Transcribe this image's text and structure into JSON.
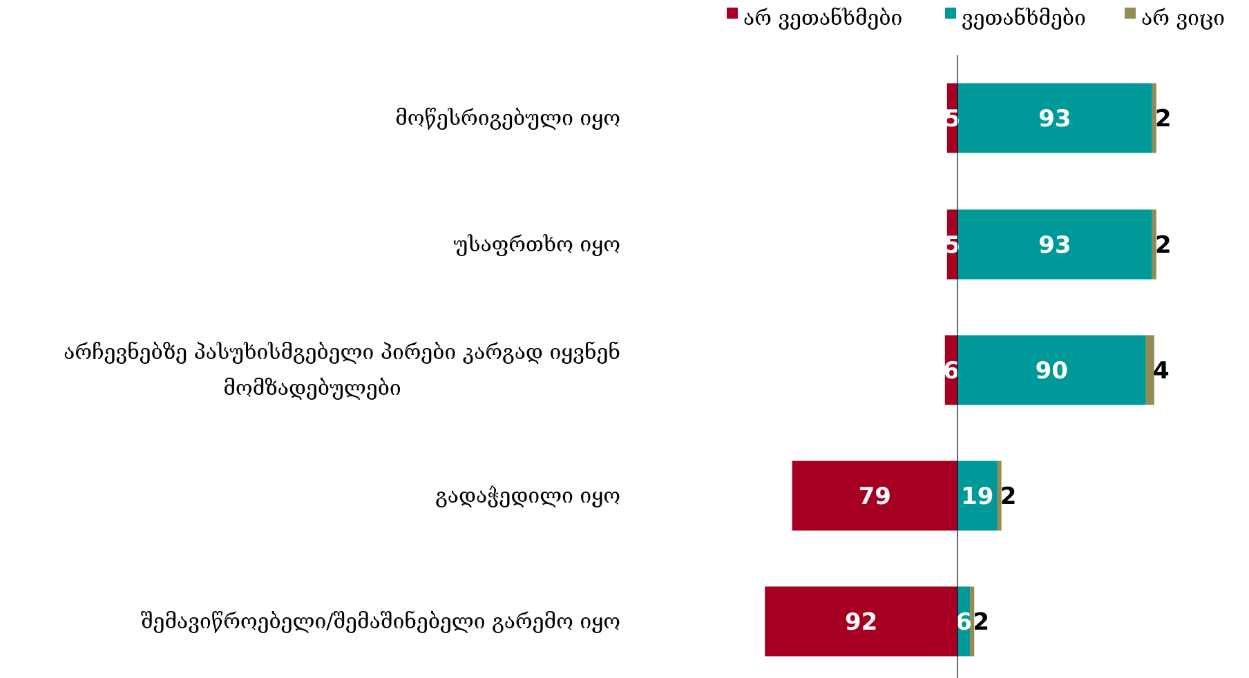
{
  "chart_data": {
    "type": "bar",
    "orientation": "horizontal",
    "stacked": "diverging",
    "categories": [
      "მოწესრიგებული იყო",
      "უსაფრთხო იყო",
      "არჩევნებზე პასუხისმგებელი პირები კარგად იყვნენ მომზადებულები",
      "გადაჭედილი იყო",
      "შემავიწროებელი/შემაშინებელი გარემო იყო"
    ],
    "series": [
      {
        "name": "არ ვეთანხმები",
        "values": [
          5,
          5,
          6,
          79,
          92
        ],
        "color": "#A50021",
        "direction": "left"
      },
      {
        "name": "ვეთანხმები",
        "values": [
          93,
          93,
          90,
          19,
          6
        ],
        "color": "#009999",
        "direction": "right"
      },
      {
        "name": "არ ვიცი",
        "values": [
          2,
          2,
          4,
          2,
          2
        ],
        "color": "#948A54",
        "direction": "right"
      }
    ],
    "data_labels": true,
    "legend_position": "top-right",
    "grid": false,
    "title": "",
    "xlabel": "",
    "ylabel": ""
  }
}
